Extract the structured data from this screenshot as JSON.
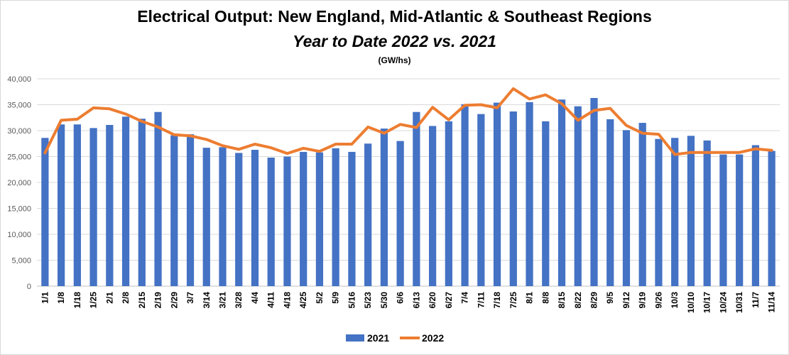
{
  "chart_data": {
    "type": "bar",
    "title": "Electrical Output:  New England, Mid-Atlantic & Southeast Regions",
    "subtitle": "Year to Date 2022 vs. 2021",
    "unit_label": "(GW/hs)",
    "ylim": [
      0,
      40000
    ],
    "y_ticks": [
      "0",
      "5,000",
      "10,000",
      "15,000",
      "20,000",
      "25,000",
      "30,000",
      "35,000",
      "40,000"
    ],
    "grid": true,
    "legend_position": "bottom",
    "categories": [
      "1/1",
      "1/8",
      "1/18",
      "1/25",
      "2/1",
      "2/8",
      "2/15",
      "2/19",
      "2/29",
      "3/7",
      "3/14",
      "3/21",
      "3/28",
      "4/4",
      "4/11",
      "4/18",
      "4/25",
      "5/2",
      "5/9",
      "5/16",
      "5/23",
      "5/30",
      "6/6",
      "6/13",
      "6/20",
      "6/27",
      "7/4",
      "7/11",
      "7/18",
      "7/25",
      "8/1",
      "8/8",
      "8/15",
      "8/22",
      "8/29",
      "9/5",
      "9/12",
      "9/19",
      "9/26",
      "10/3",
      "10/10",
      "10/17",
      "10/24",
      "10/31",
      "11/7",
      "11/14"
    ],
    "series": [
      {
        "name": "2021",
        "type": "bar",
        "color": "#4472c4",
        "values": [
          28600,
          31200,
          31200,
          30500,
          31100,
          32700,
          32300,
          33600,
          29100,
          29300,
          26700,
          26800,
          25700,
          26300,
          24800,
          25000,
          25900,
          25800,
          26600,
          25900,
          27500,
          30400,
          28000,
          33600,
          30900,
          31800,
          35100,
          33200,
          35400,
          33700,
          35500,
          31800,
          36000,
          34700,
          36300,
          32200,
          30100,
          31500,
          28400,
          28600,
          29000,
          28100,
          25400,
          25400,
          27200,
          26100
        ]
      },
      {
        "name": "2022",
        "type": "line",
        "color": "#ed7d31",
        "values": [
          25700,
          32000,
          32200,
          34400,
          34200,
          33200,
          31800,
          30700,
          29200,
          29000,
          28300,
          27100,
          26400,
          27400,
          26700,
          25600,
          26600,
          26000,
          27400,
          27400,
          30700,
          29500,
          31200,
          30600,
          34500,
          32100,
          34900,
          35000,
          34400,
          38100,
          36100,
          36900,
          35200,
          32000,
          33900,
          34300,
          31000,
          29500,
          29300,
          25400,
          25800,
          25800,
          25800,
          25800,
          26500,
          26200
        ]
      }
    ]
  }
}
